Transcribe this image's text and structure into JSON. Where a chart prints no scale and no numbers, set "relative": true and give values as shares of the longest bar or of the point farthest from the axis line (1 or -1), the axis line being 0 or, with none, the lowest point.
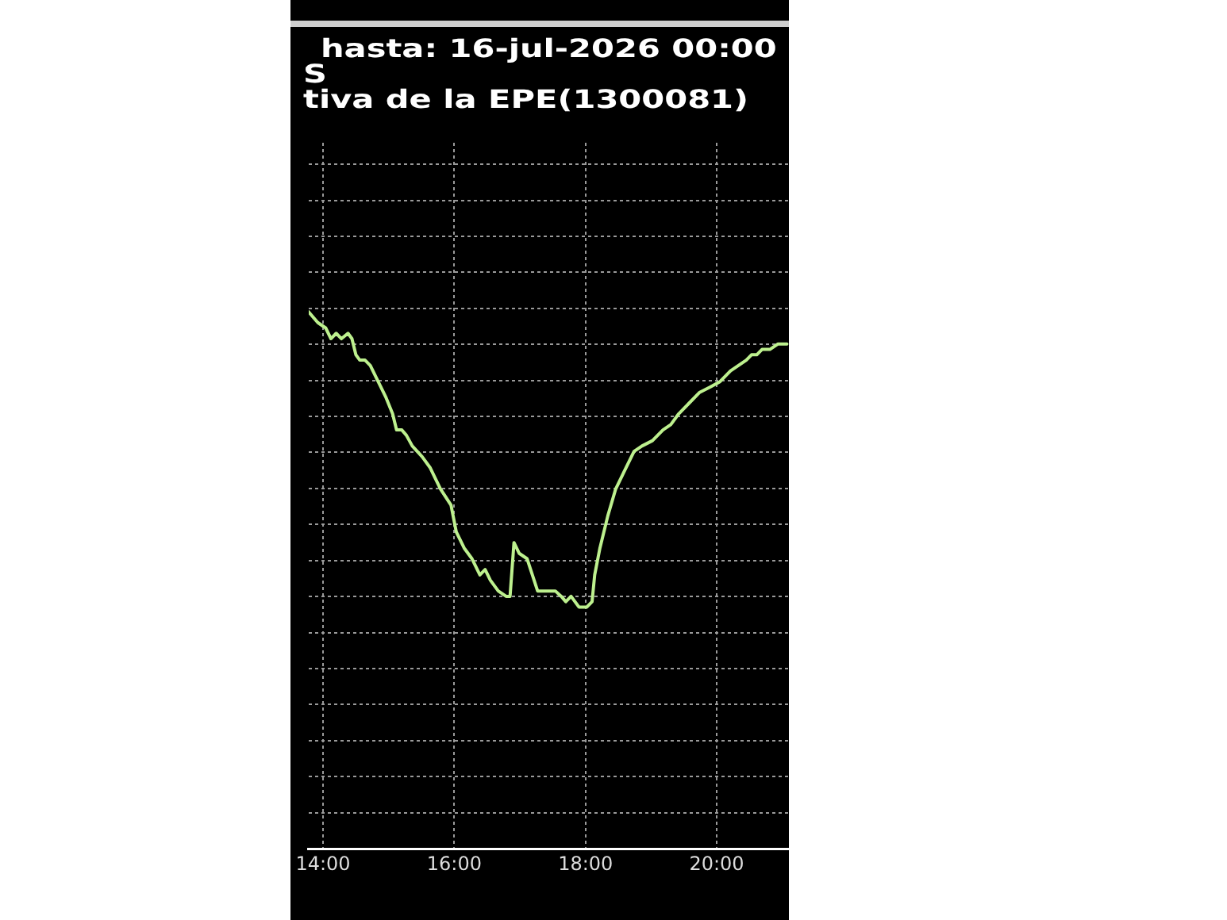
{
  "chart_data": {
    "type": "line",
    "title": "hasta: 16-jul-2026 00:00",
    "subtitle": "S",
    "annotations": [
      "tiva de la EPE(1300081)"
    ],
    "relative": true,
    "x": [
      13.78,
      13.92,
      14.04,
      14.12,
      14.2,
      14.28,
      14.38,
      14.44,
      14.5,
      14.56,
      14.64,
      14.72,
      14.84,
      14.96,
      15.06,
      15.12,
      15.2,
      15.27,
      15.36,
      15.51,
      15.63,
      15.71,
      15.79,
      15.95,
      16.03,
      16.15,
      16.27,
      16.39,
      16.47,
      16.55,
      16.67,
      16.79,
      16.85,
      16.91,
      16.99,
      17.11,
      17.19,
      17.27,
      17.39,
      17.47,
      17.54,
      17.63,
      17.7,
      17.78,
      17.9,
      18.02,
      18.1,
      18.14,
      18.22,
      18.34,
      18.46,
      18.58,
      18.74,
      18.86,
      19.02,
      19.18,
      19.3,
      19.42,
      19.58,
      19.74,
      19.9,
      20.05,
      20.21,
      20.33,
      20.45,
      20.53,
      20.61,
      20.69,
      20.81,
      20.93,
      21.07
    ],
    "series": [
      {
        "color": "#bdf08e",
        "values": [
          1.0,
          0.98,
          0.97,
          0.95,
          0.96,
          0.95,
          0.96,
          0.95,
          0.92,
          0.91,
          0.91,
          0.9,
          0.87,
          0.84,
          0.81,
          0.78,
          0.78,
          0.77,
          0.75,
          0.73,
          0.71,
          0.69,
          0.67,
          0.64,
          0.59,
          0.56,
          0.54,
          0.51,
          0.52,
          0.5,
          0.48,
          0.47,
          0.47,
          0.57,
          0.55,
          0.54,
          0.51,
          0.48,
          0.48,
          0.48,
          0.48,
          0.47,
          0.46,
          0.47,
          0.45,
          0.45,
          0.46,
          0.51,
          0.56,
          0.62,
          0.67,
          0.7,
          0.74,
          0.75,
          0.76,
          0.78,
          0.79,
          0.81,
          0.83,
          0.85,
          0.86,
          0.87,
          0.89,
          0.9,
          0.91,
          0.92,
          0.92,
          0.93,
          0.93,
          0.94,
          0.94
        ]
      }
    ],
    "xlim": [
      13.78,
      21.1
    ],
    "xticks": [
      {
        "value": 14,
        "label": "14:00"
      },
      {
        "value": 16,
        "label": "16:00"
      },
      {
        "value": 18,
        "label": "18:00"
      },
      {
        "value": 20,
        "label": "20:00"
      }
    ],
    "grid": true,
    "marker": "none",
    "line_style": "solid"
  }
}
